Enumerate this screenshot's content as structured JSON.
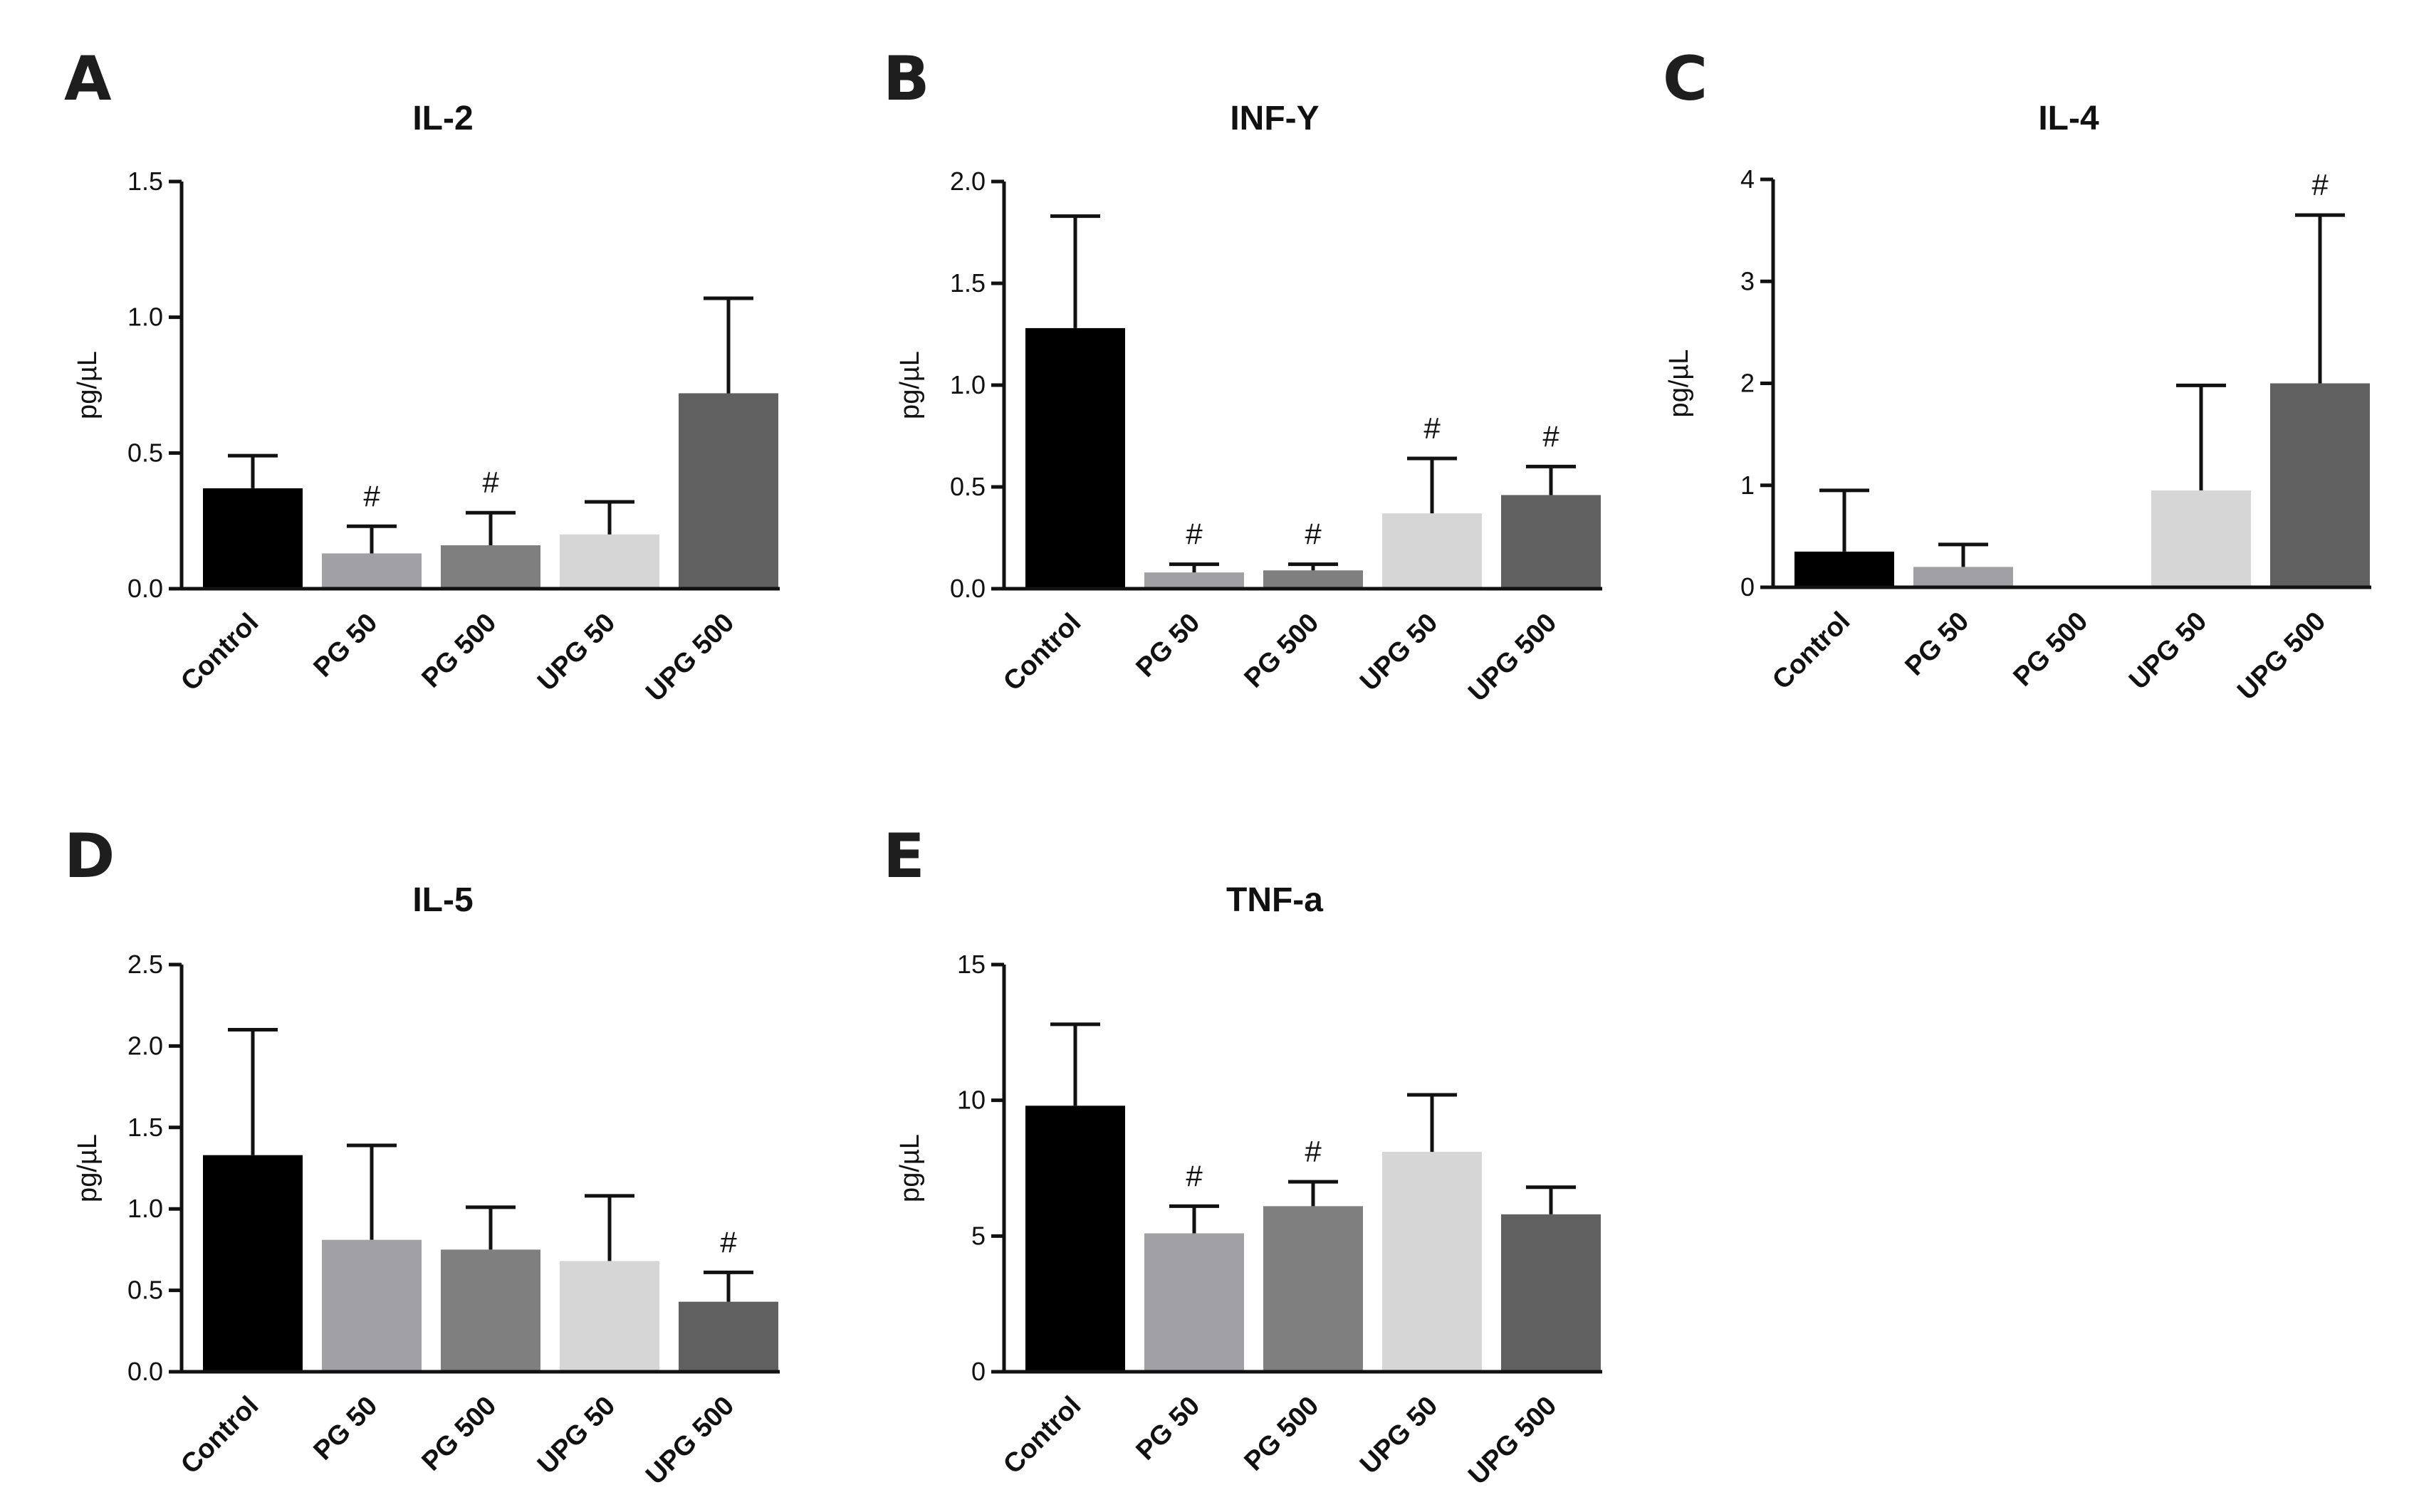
{
  "colors": {
    "Control": "#000000",
    "PG 50": "#a1a1a5",
    "PG 500": "#7f7f7f",
    "UPG 50": "#d6d6d6",
    "UPG 500": "#606060"
  },
  "chart_data": [
    {
      "panel": "A",
      "type": "bar",
      "title": "IL-2",
      "ylabel": "pg/µL",
      "xlabel": "",
      "categories": [
        "Control",
        "PG 50",
        "PG 500",
        "UPG 50",
        "UPG 500"
      ],
      "values": [
        0.37,
        0.13,
        0.16,
        0.2,
        0.72
      ],
      "errors": [
        0.12,
        0.1,
        0.12,
        0.12,
        0.35
      ],
      "significance": [
        "",
        "#",
        "#",
        "",
        ""
      ],
      "ylim": [
        0,
        1.5
      ],
      "yticks": [
        0,
        0.5,
        1.0,
        1.5
      ],
      "ytick_labels": [
        "0.0",
        "0.5",
        "1.0",
        "1.5"
      ]
    },
    {
      "panel": "B",
      "type": "bar",
      "title": "INF-Y",
      "ylabel": "pg/µL",
      "xlabel": "",
      "categories": [
        "Control",
        "PG 50",
        "PG 500",
        "UPG 50",
        "UPG 500"
      ],
      "values": [
        1.28,
        0.08,
        0.09,
        0.37,
        0.46
      ],
      "errors": [
        0.55,
        0.04,
        0.03,
        0.27,
        0.14
      ],
      "significance": [
        "",
        "#",
        "#",
        "#",
        "#"
      ],
      "ylim": [
        0,
        2.0
      ],
      "yticks": [
        0,
        0.5,
        1.0,
        1.5,
        2.0
      ],
      "ytick_labels": [
        "0.0",
        "0.5",
        "1.0",
        "1.5",
        "2.0"
      ]
    },
    {
      "panel": "C",
      "type": "bar",
      "title": "IL-4",
      "ylabel": "pg/µL",
      "xlabel": "",
      "categories": [
        "Control",
        "PG 50",
        "PG 500",
        "UPG 50",
        "UPG 500"
      ],
      "values": [
        0.35,
        0.2,
        0.0,
        0.95,
        2.0
      ],
      "errors": [
        0.6,
        0.22,
        0.0,
        1.03,
        1.65
      ],
      "significance": [
        "",
        "",
        "",
        "",
        "#"
      ],
      "ylim": [
        0,
        4
      ],
      "yticks": [
        0,
        1,
        2,
        3,
        4
      ],
      "ytick_labels": [
        "0",
        "1",
        "2",
        "3",
        "4"
      ]
    },
    {
      "panel": "D",
      "type": "bar",
      "title": "IL-5",
      "ylabel": "pg/µL",
      "xlabel": "",
      "categories": [
        "Control",
        "PG 50",
        "PG 500",
        "UPG 50",
        "UPG 500"
      ],
      "values": [
        1.33,
        0.81,
        0.75,
        0.68,
        0.43
      ],
      "errors": [
        0.77,
        0.58,
        0.26,
        0.4,
        0.18
      ],
      "significance": [
        "",
        "",
        "",
        "",
        "#"
      ],
      "ylim": [
        0,
        2.5
      ],
      "yticks": [
        0,
        0.5,
        1.0,
        1.5,
        2.0,
        2.5
      ],
      "ytick_labels": [
        "0.0",
        "0.5",
        "1.0",
        "1.5",
        "2.0",
        "2.5"
      ]
    },
    {
      "panel": "E",
      "type": "bar",
      "title": "TNF-a",
      "ylabel": "pg/µL",
      "xlabel": "",
      "categories": [
        "Control",
        "PG 50",
        "PG 500",
        "UPG 50",
        "UPG 500"
      ],
      "values": [
        9.8,
        5.1,
        6.1,
        8.1,
        5.8
      ],
      "errors": [
        3.0,
        1.0,
        0.9,
        2.1,
        1.0
      ],
      "significance": [
        "",
        "#",
        "#",
        "",
        ""
      ],
      "ylim": [
        0,
        15
      ],
      "yticks": [
        0,
        5,
        10,
        15
      ],
      "ytick_labels": [
        "0",
        "5",
        "10",
        "15"
      ]
    }
  ]
}
